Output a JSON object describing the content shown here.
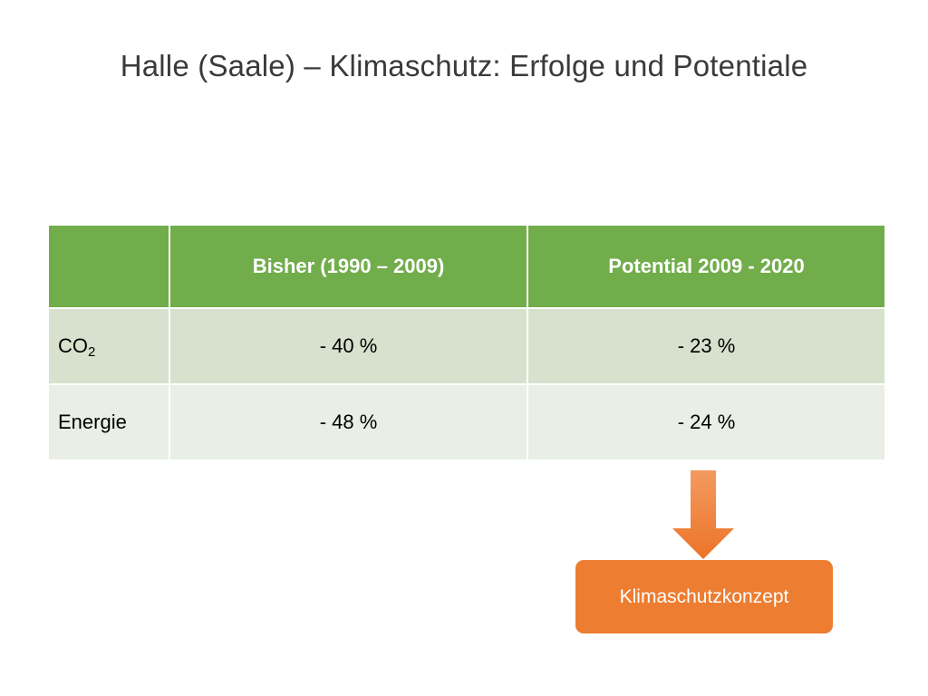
{
  "slide": {
    "title": "Halle (Saale) – Klimaschutz: Erfolge und Potentiale"
  },
  "table": {
    "headers": [
      "",
      "Bisher (1990 – 2009)",
      "Potential 2009 - 2020"
    ],
    "rows": [
      {
        "label_main": "CO",
        "label_sub": "2",
        "values": [
          "- 40 %",
          "- 23 %"
        ]
      },
      {
        "label_main": "Energie",
        "label_sub": "",
        "values": [
          "- 48 %",
          "- 24 %"
        ]
      }
    ],
    "colors": {
      "header": "#72ad4c",
      "row_dark": "#d7e1cd",
      "row_light": "#e9efe5"
    }
  },
  "concept": {
    "label": "Klimaschutzkonzept",
    "color": "#ed7d31",
    "arrow_icon": "down-arrow-icon"
  }
}
